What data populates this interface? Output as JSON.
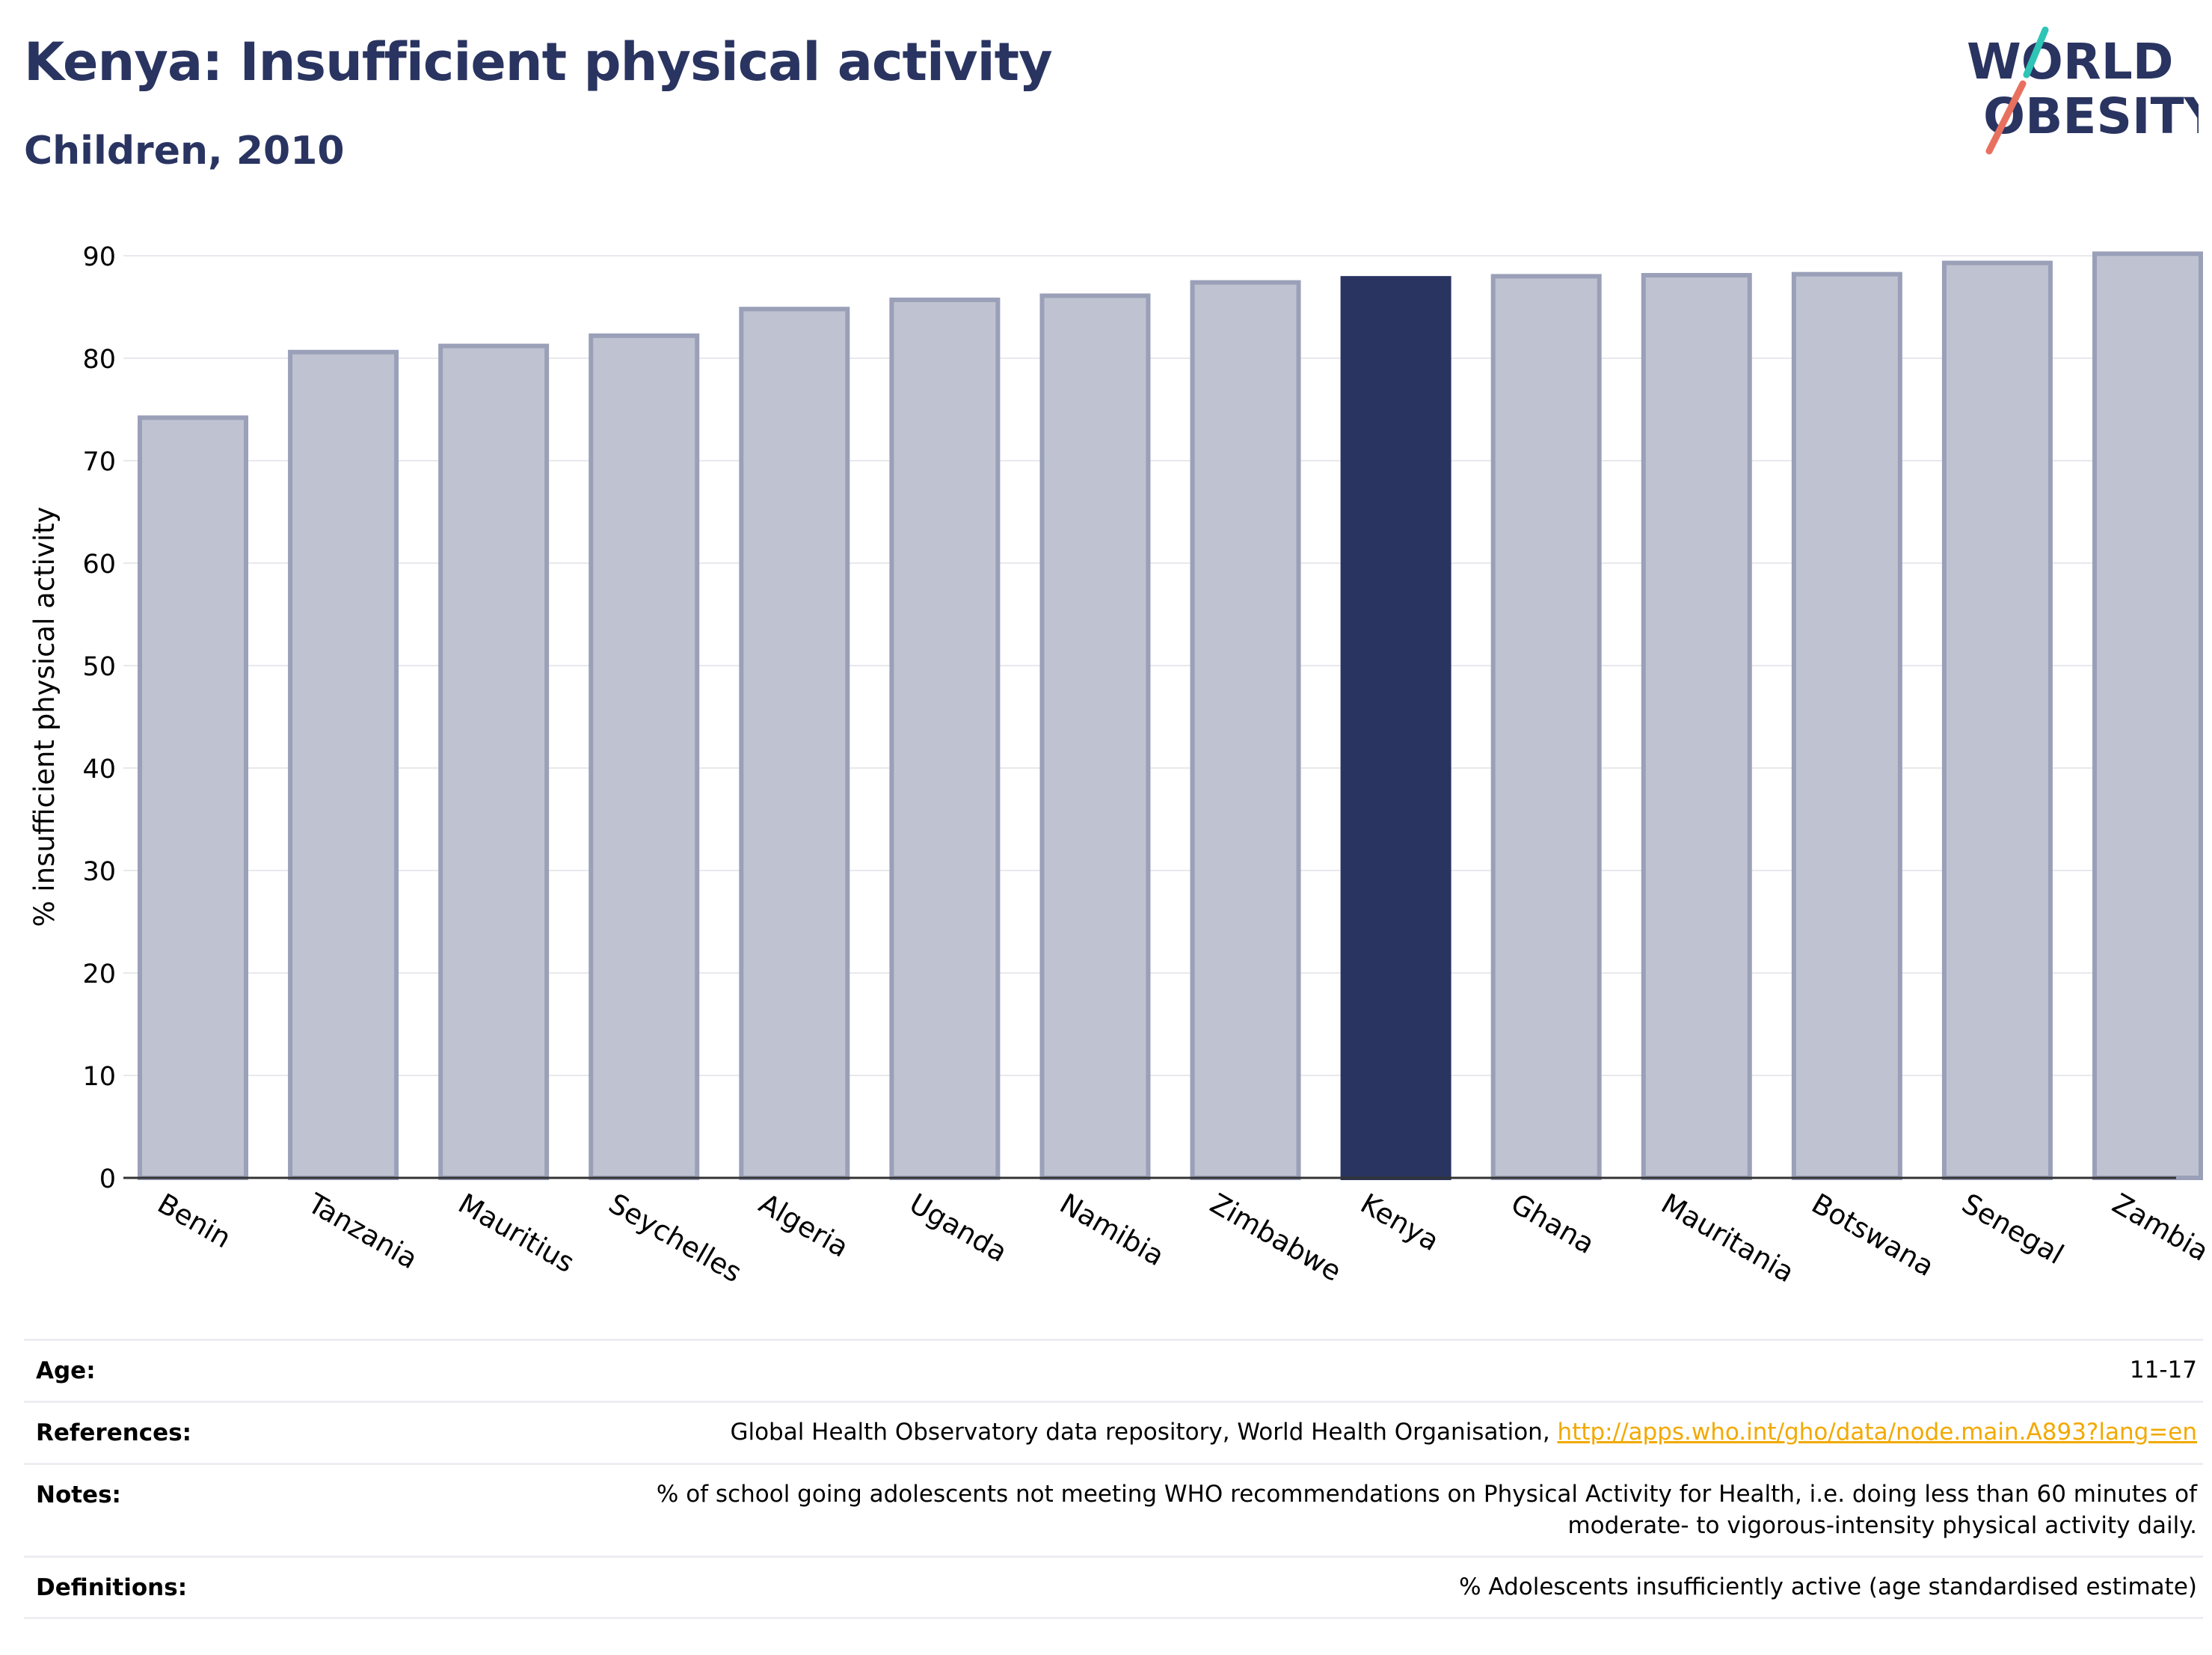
{
  "header": {
    "title": "Kenya: Insufficient physical activity",
    "subtitle": "Children, 2010"
  },
  "logo": {
    "line1": "WORLD",
    "line2": "OBESITY",
    "colors": {
      "text": "#2a3461",
      "slash_top": "#2ec4b6",
      "slash_bottom": "#e8705f"
    }
  },
  "colors": {
    "highlight": "#2a3461",
    "bar_fill": "#bfc2d0",
    "bar_stroke": "#9aa0b8",
    "axis": "#333333",
    "grid": "#e8e8ee",
    "link": "#f2a900"
  },
  "chart_data": {
    "type": "bar",
    "categories": [
      "Benin",
      "Tanzania",
      "Mauritius",
      "Seychelles",
      "Algeria",
      "Uganda",
      "Namibia",
      "Zimbabwe",
      "Kenya",
      "Ghana",
      "Mauritania",
      "Botswana",
      "Senegal",
      "Zambia"
    ],
    "values": [
      74.2,
      80.6,
      81.2,
      82.2,
      84.8,
      85.7,
      86.1,
      87.4,
      87.8,
      88.0,
      88.1,
      88.2,
      89.3,
      90.2
    ],
    "highlight": "Kenya",
    "ylabel": "% insufficient physical activity",
    "xlabel": "",
    "ylim": [
      0,
      90
    ],
    "yticks": [
      0,
      10,
      20,
      30,
      40,
      50,
      60,
      70,
      80,
      90
    ],
    "grid": true
  },
  "info": {
    "age": {
      "label": "Age:",
      "value": "11-17"
    },
    "references": {
      "label": "References:",
      "text": "Global Health Observatory data repository, World Health Organisation, ",
      "link": "http://apps.who.int/gho/data/node.main.A893?lang=en"
    },
    "notes": {
      "label": "Notes:",
      "line1": "% of school going adolescents not meeting WHO recommendations on Physical Activity for Health, i.e. doing less than 60 minutes of",
      "line2": "moderate- to vigorous-intensity physical activity daily."
    },
    "definitions": {
      "label": "Definitions:",
      "value": "% Adolescents insufficiently active (age standardised estimate)"
    }
  }
}
